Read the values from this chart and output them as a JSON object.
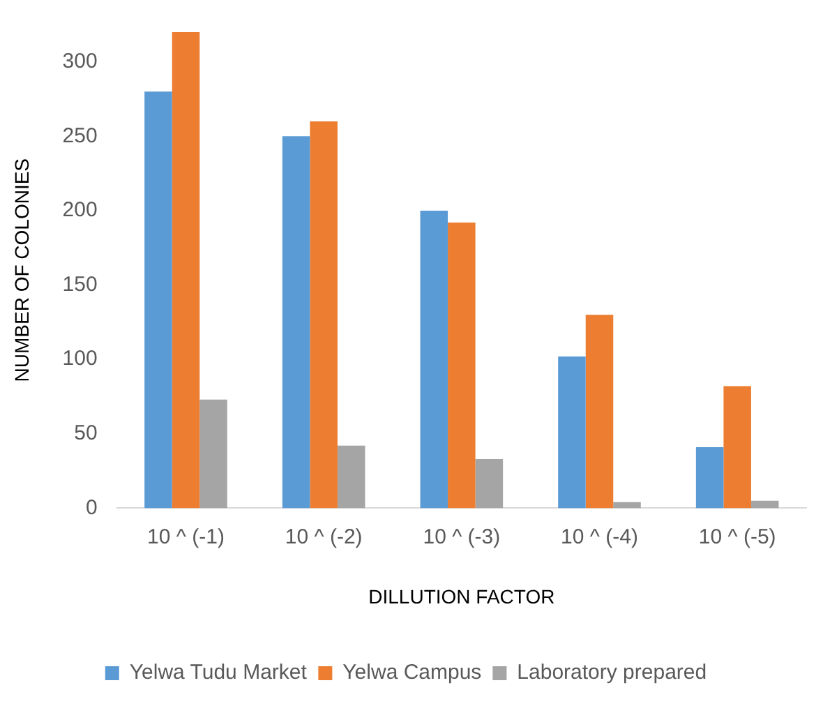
{
  "chart_data": {
    "type": "bar",
    "xlabel": "DILLUTION FACTOR",
    "ylabel": "NUMBER OF COLONIES",
    "categories": [
      "10 ^ (-1)",
      "10 ^ (-2)",
      "10 ^ (-3)",
      "10 ^ (-4)",
      "10 ^ (-5)"
    ],
    "series": [
      {
        "name": "Yelwa Tudu Market",
        "color": "#5b9bd5",
        "values": [
          280,
          250,
          200,
          102,
          41
        ]
      },
      {
        "name": "Yelwa Campus",
        "color": "#ed7d31",
        "values": [
          320,
          260,
          192,
          130,
          82
        ]
      },
      {
        "name": "Laboratory prepared",
        "color": "#a5a5a5",
        "values": [
          73,
          42,
          33,
          4,
          5
        ]
      }
    ],
    "ylim": [
      0,
      320
    ],
    "yticks": [
      0,
      50,
      100,
      150,
      200,
      250,
      300
    ],
    "grid": false,
    "legend": "bottom"
  }
}
